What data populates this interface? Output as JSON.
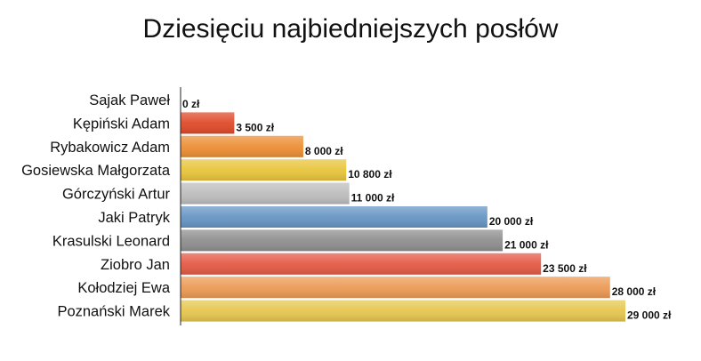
{
  "chart_data": {
    "type": "bar",
    "orientation": "horizontal",
    "title": "Dziesięciu najbiedniejszych posłów",
    "xlabel": "",
    "ylabel": "",
    "xlim": [
      0,
      29000
    ],
    "grid": false,
    "legend": "none",
    "categories": [
      "Sajak Paweł",
      "Kępiński Adam",
      "Rybakowicz Adam",
      "Gosiewska Małgorzata",
      "Górczyński Artur",
      "Jaki Patryk",
      "Krasulski Leonard",
      "Ziobro Jan",
      "Kołodziej Ewa",
      "Poznański Marek"
    ],
    "values": [
      0,
      3500,
      8000,
      10800,
      11000,
      20000,
      21000,
      23500,
      28000,
      29000
    ],
    "value_labels": [
      "0 zł",
      "3 500 zł",
      "8 000 zł",
      "10 800 zł",
      "11 000 zł",
      "20 000 zł",
      "21 000 zł",
      "23 500 zł",
      "28 000 zł",
      "29 000 zł"
    ],
    "colors": [
      "#e04a2a",
      "#e04a2a",
      "#ec8f35",
      "#e8c53c",
      "#bdbdbd",
      "#6795c4",
      "#8f8f8f",
      "#e45a45",
      "#ec9a55",
      "#e6c650"
    ]
  }
}
